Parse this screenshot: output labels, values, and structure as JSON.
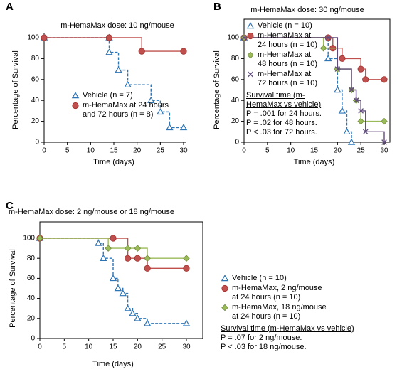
{
  "chart_data": [
    {
      "type": "step",
      "panel": "A",
      "title": "m-HemaMax dose: 10 ng/mouse",
      "xlabel": "Time (days)",
      "ylabel": "Percentage of Survival",
      "xlim": [
        0,
        30
      ],
      "xticks": [
        0,
        5,
        10,
        15,
        20,
        25,
        30
      ],
      "ylim": [
        0,
        100
      ],
      "yticks": [
        0,
        20,
        40,
        60,
        80,
        100
      ],
      "frame": false,
      "series": [
        {
          "name": "Vehicle (n = 7)",
          "color": "#2e75b6",
          "marker": "triangle",
          "dashed": true,
          "x": [
            0,
            14,
            14,
            16,
            18,
            23,
            25,
            27,
            30
          ],
          "values": [
            100,
            100,
            86,
            69,
            55,
            40,
            29,
            14,
            14
          ]
        },
        {
          "name": "m-HemaMax at 24 hours and 72 hours (n = 8)",
          "color": "#c0504d",
          "marker": "circle",
          "dashed": false,
          "x": [
            0,
            14,
            21,
            30
          ],
          "values": [
            100,
            100,
            87,
            87
          ]
        }
      ]
    },
    {
      "type": "step",
      "panel": "B",
      "title": "m-HemaMax dose: 30 ng/mouse",
      "xlabel": "Time (days)",
      "ylabel": "Percentage of Survival",
      "xlim": [
        0,
        30
      ],
      "xticks": [
        0,
        5,
        10,
        15,
        20,
        25,
        30
      ],
      "ylim": [
        0,
        100
      ],
      "yticks": [
        0,
        20,
        40,
        60,
        80,
        100
      ],
      "frame": true,
      "series": [
        {
          "name": "Vehicle (n = 10)",
          "color": "#2e75b6",
          "marker": "triangle",
          "dashed": true,
          "x": [
            0,
            18,
            20,
            21,
            22,
            23
          ],
          "values": [
            100,
            80,
            50,
            30,
            10,
            0
          ]
        },
        {
          "name": "m-HemaMax at 24 hours (n = 10)",
          "color": "#c0504d",
          "marker": "circle",
          "dashed": false,
          "x": [
            0,
            18,
            19,
            21,
            25,
            26,
            30
          ],
          "values": [
            100,
            100,
            90,
            80,
            70,
            60,
            60
          ]
        },
        {
          "name": "m-HemaMax at 48 hours (n = 10)",
          "color": "#9bbb59",
          "marker": "diamond",
          "dashed": false,
          "x": [
            0,
            17,
            20,
            23,
            24,
            25,
            30
          ],
          "values": [
            100,
            90,
            70,
            50,
            40,
            20,
            20
          ]
        },
        {
          "name": "m-HemaMax at 72 hours (n = 10)",
          "color": "#604a7b",
          "marker": "x",
          "dashed": false,
          "x": [
            0,
            18,
            20,
            23,
            24,
            25,
            26,
            30
          ],
          "values": [
            100,
            100,
            70,
            50,
            40,
            30,
            10,
            0
          ]
        }
      ],
      "notes": {
        "heading": "Survival time (m-HemaMax vs vehicle)",
        "lines": [
          "P = .001 for 24 hours.",
          "P = .02 for 48 hours.",
          "P < .03 for 72 hours."
        ]
      }
    },
    {
      "type": "step",
      "panel": "C",
      "title": "m-HemaMax dose: 2 ng/mouse or 18 ng/mouse",
      "xlabel": "Time (days)",
      "ylabel": "Percentage of Survival",
      "xlim": [
        0,
        30
      ],
      "xticks": [
        0,
        5,
        10,
        15,
        20,
        25,
        30
      ],
      "ylim": [
        0,
        100
      ],
      "yticks": [
        0,
        20,
        40,
        60,
        80,
        100
      ],
      "frame": true,
      "series": [
        {
          "name": "Vehicle (n = 10)",
          "color": "#2e75b6",
          "marker": "triangle",
          "dashed": true,
          "x": [
            0,
            12,
            13,
            15,
            16,
            17,
            18,
            19,
            20,
            22,
            30
          ],
          "values": [
            100,
            95,
            80,
            60,
            50,
            45,
            30,
            25,
            20,
            15,
            15
          ]
        },
        {
          "name": "m-HemaMax, 2 ng/mouse at 24 hours (n = 10)",
          "color": "#c0504d",
          "marker": "circle",
          "dashed": false,
          "x": [
            0,
            15,
            18,
            20,
            22,
            30
          ],
          "values": [
            100,
            100,
            80,
            80,
            70,
            70
          ]
        },
        {
          "name": "m-HemaMax, 18 ng/mouse at 24 hours (n = 10)",
          "color": "#9bbb59",
          "marker": "diamond",
          "dashed": false,
          "x": [
            0,
            14,
            18,
            20,
            22,
            30
          ],
          "values": [
            100,
            90,
            90,
            90,
            80,
            80
          ]
        }
      ],
      "notes": {
        "heading": "Survival time (m-HemaMax vs vehicle)",
        "lines": [
          "P = .07 for 2 ng/mouse.",
          "P < .03 for 18 ng/mouse."
        ]
      }
    }
  ]
}
